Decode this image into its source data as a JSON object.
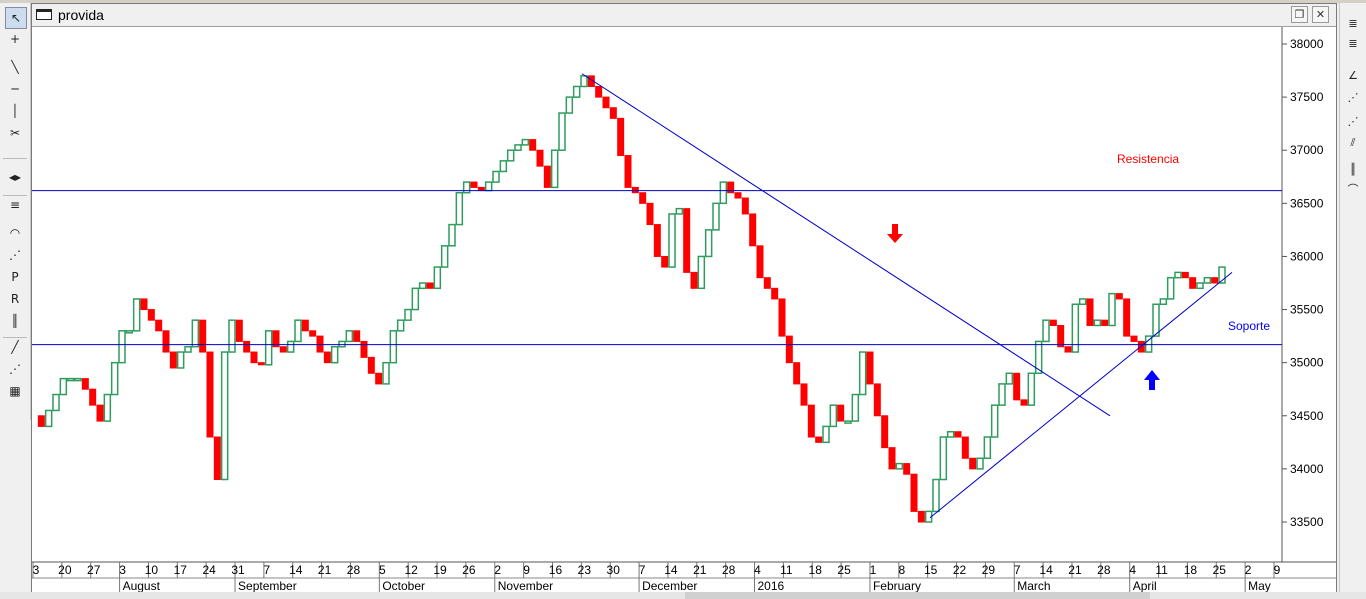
{
  "window": {
    "title": "provida"
  },
  "left_toolbar": [
    {
      "name": "cursor-tool-icon",
      "glyph": "↖"
    },
    {
      "name": "crosshair-tool-icon",
      "glyph": "+"
    },
    {
      "name": "trendline-tool-icon",
      "glyph": "╲"
    },
    {
      "name": "horizontal-line-tool-icon",
      "glyph": "─"
    },
    {
      "name": "vertical-line-tool-icon",
      "glyph": "│"
    },
    {
      "name": "delete-line-tool-icon",
      "glyph": "✂"
    },
    {
      "name": "scroll-tool-icon",
      "glyph": "◂▸"
    },
    {
      "name": "channel-tool-icon",
      "glyph": "≡"
    },
    {
      "name": "arc-tool-icon",
      "glyph": "◠"
    },
    {
      "name": "fan-tool-icon",
      "glyph": "⋰"
    },
    {
      "name": "fibonacci-p-tool-icon",
      "glyph": "P"
    },
    {
      "name": "fibonacci-r-tool-icon",
      "glyph": "R"
    },
    {
      "name": "cycle-lines-tool-icon",
      "glyph": "║"
    },
    {
      "name": "line-tool-icon",
      "glyph": "╱"
    },
    {
      "name": "speed-lines-tool-icon",
      "glyph": "⋰"
    },
    {
      "name": "grid-tool-icon",
      "glyph": "▦"
    }
  ],
  "right_toolbar": [
    {
      "name": "fib-retracement-icon",
      "glyph": "≣"
    },
    {
      "name": "fib-extension-icon",
      "glyph": "≣"
    },
    {
      "name": "angle-tool-icon",
      "glyph": "∠"
    },
    {
      "name": "gann-fan-icon",
      "glyph": "⋰"
    },
    {
      "name": "speed-resistance-icon",
      "glyph": "⋰"
    },
    {
      "name": "parallel-lines-icon",
      "glyph": "⫽"
    },
    {
      "name": "cycle-tool-icon",
      "glyph": "║"
    },
    {
      "name": "arc-right-icon",
      "glyph": "⌒"
    }
  ],
  "annotations": {
    "resistance_label": "Resistencia",
    "support_label": "Soporte"
  },
  "colors": {
    "up_candle": "#2e9c5e",
    "down_candle": "#ff0000",
    "lines": "#0000cc",
    "resistance_text": "#ff0000",
    "support_text": "#0000ff",
    "sell_arrow": "#ff0000",
    "buy_arrow": "#0000ff"
  },
  "chart_data": {
    "type": "candlestick",
    "y_ticks": [
      33500,
      34000,
      34500,
      35000,
      35500,
      36000,
      36500,
      37000,
      37500,
      38000
    ],
    "day_ticks": [
      "3",
      "20",
      "27",
      "3",
      "10",
      "17",
      "24",
      "31",
      "7",
      "14",
      "21",
      "28",
      "5",
      "12",
      "19",
      "26",
      "2",
      "9",
      "16",
      "23",
      "30",
      "7",
      "14",
      "21",
      "28",
      "4",
      "11",
      "18",
      "25",
      "1",
      "8",
      "15",
      "22",
      "29",
      "7",
      "14",
      "21",
      "28",
      "4",
      "11",
      "18",
      "25",
      "2",
      "9"
    ],
    "month_labels": [
      "August",
      "September",
      "October",
      "November",
      "December",
      "2016",
      "February",
      "March",
      "April",
      "May"
    ],
    "resistance_level": 36620,
    "support_level": 35170,
    "downtrend_line": [
      [
        37720,
        "2015-11-23"
      ],
      [
        34500,
        "2016-03-28"
      ]
    ],
    "uptrend_line": [
      [
        33540,
        "2016-02-15"
      ],
      [
        35850,
        "2016-04-25"
      ]
    ],
    "closes": [
      34500,
      34400,
      34550,
      34700,
      34850,
      34850,
      34850,
      34750,
      34600,
      34450,
      34700,
      35000,
      35300,
      35300,
      35600,
      35500,
      35400,
      35300,
      35100,
      34950,
      35100,
      35150,
      35400,
      35100,
      34300,
      33900,
      35100,
      35400,
      35200,
      35100,
      35000,
      34980,
      35300,
      35150,
      35100,
      35200,
      35400,
      35300,
      35250,
      35100,
      35000,
      35150,
      35200,
      35300,
      35200,
      35050,
      34900,
      34800,
      35000,
      35300,
      35400,
      35500,
      35700,
      35750,
      35700,
      35900,
      36100,
      36300,
      36600,
      36700,
      36650,
      36620,
      36700,
      36800,
      36900,
      37000,
      37050,
      37100,
      37000,
      36850,
      36650,
      37000,
      37350,
      37500,
      37600,
      37700,
      37600,
      37500,
      37400,
      37300,
      36950,
      36650,
      36600,
      36500,
      36300,
      36000,
      35900,
      36400,
      36450,
      35850,
      35700,
      36000,
      36250,
      36500,
      36700,
      36600,
      36550,
      36400,
      36100,
      35800,
      35700,
      35600,
      35250,
      35000,
      34800,
      34600,
      34300,
      34250,
      34400,
      34600,
      34450,
      34450,
      34700,
      35100,
      34800,
      34500,
      34200,
      34000,
      34050,
      33950,
      33600,
      33500,
      33600,
      33900,
      34300,
      34350,
      34300,
      34100,
      34000,
      34100,
      34300,
      34600,
      34800,
      34900,
      34650,
      34600,
      34900,
      35200,
      35400,
      35350,
      35150,
      35100,
      35550,
      35600,
      35350,
      35400,
      35350,
      35650,
      35600,
      35250,
      35200,
      35100,
      35250,
      35550,
      35600,
      35800,
      35850,
      35800,
      35700,
      35750,
      35800,
      35750,
      35900
    ]
  }
}
